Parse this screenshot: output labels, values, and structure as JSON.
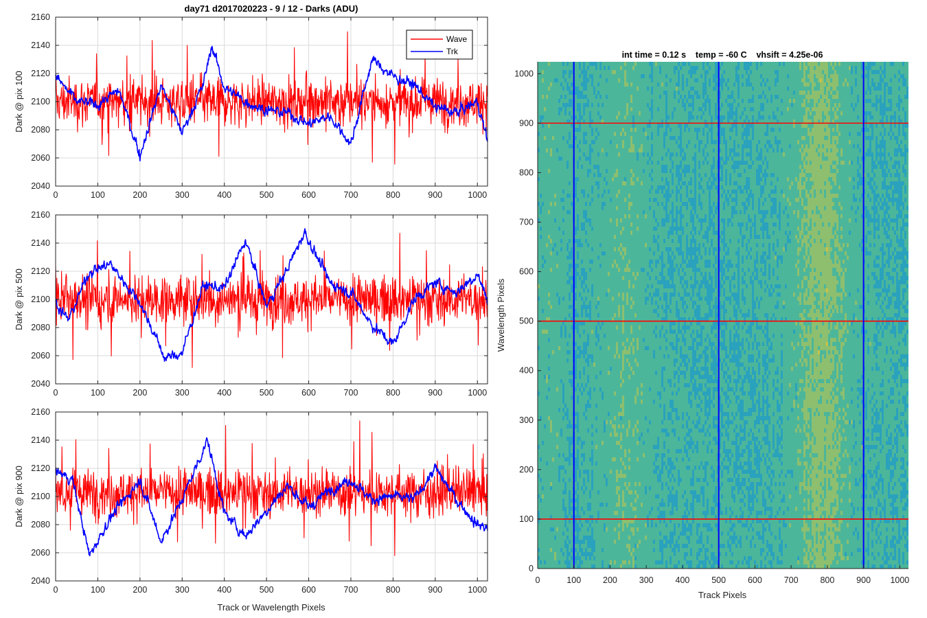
{
  "chart_data": [
    {
      "type": "line",
      "title": "day71 d2017020223 - 9 / 12 - Darks (ADU)",
      "ylabel": "Dark @ pix 100",
      "xlabel": "",
      "xlim": [
        0,
        1024
      ],
      "ylim": [
        2040,
        2160
      ],
      "xticks": [
        0,
        100,
        200,
        300,
        400,
        500,
        600,
        700,
        800,
        900,
        1000
      ],
      "yticks": [
        2040,
        2060,
        2080,
        2100,
        2120,
        2140,
        2160
      ],
      "grid": true,
      "legend": {
        "placement": "top-right",
        "entries": [
          "Wave",
          "Trk"
        ]
      },
      "series": [
        {
          "name": "Wave",
          "color": "#ff0000",
          "mean": 2100,
          "noise": 12,
          "min": 2046,
          "max": 2152
        },
        {
          "name": "Trk",
          "color": "#0000ff",
          "anchors_x": [
            0,
            50,
            100,
            150,
            200,
            250,
            300,
            350,
            370,
            400,
            450,
            500,
            550,
            600,
            650,
            700,
            750,
            800,
            850,
            900,
            950,
            1000,
            1024
          ],
          "anchors_y": [
            2118,
            2100,
            2098,
            2108,
            2062,
            2112,
            2078,
            2112,
            2140,
            2110,
            2100,
            2094,
            2092,
            2084,
            2090,
            2070,
            2130,
            2118,
            2112,
            2096,
            2092,
            2100,
            2072
          ]
        }
      ]
    },
    {
      "type": "line",
      "title": "",
      "ylabel": "Dark @ pix 500",
      "xlabel": "",
      "xlim": [
        0,
        1024
      ],
      "ylim": [
        2040,
        2160
      ],
      "xticks": [
        0,
        100,
        200,
        300,
        400,
        500,
        600,
        700,
        800,
        900,
        1000
      ],
      "yticks": [
        2040,
        2060,
        2080,
        2100,
        2120,
        2140,
        2160
      ],
      "grid": true,
      "series": [
        {
          "name": "Wave",
          "color": "#ff0000",
          "mean": 2100,
          "noise": 12,
          "min": 2045,
          "max": 2147
        },
        {
          "name": "Trk",
          "color": "#0000ff",
          "anchors_x": [
            0,
            30,
            80,
            130,
            200,
            260,
            300,
            350,
            400,
            450,
            500,
            550,
            590,
            650,
            700,
            750,
            800,
            850,
            900,
            950,
            1000,
            1024
          ],
          "anchors_y": [
            2098,
            2085,
            2120,
            2125,
            2098,
            2058,
            2062,
            2110,
            2108,
            2142,
            2095,
            2122,
            2148,
            2112,
            2105,
            2082,
            2068,
            2100,
            2112,
            2105,
            2118,
            2100
          ]
        }
      ]
    },
    {
      "type": "line",
      "title": "",
      "ylabel": "Dark @ pix 900",
      "xlabel": "Track or Wavelength Pixels",
      "xlim": [
        0,
        1024
      ],
      "ylim": [
        2040,
        2160
      ],
      "xticks": [
        0,
        100,
        200,
        300,
        400,
        500,
        600,
        700,
        800,
        900,
        1000
      ],
      "yticks": [
        2040,
        2060,
        2080,
        2100,
        2120,
        2140,
        2160
      ],
      "grid": true,
      "series": [
        {
          "name": "Wave",
          "color": "#ff0000",
          "mean": 2103,
          "noise": 12,
          "min": 2056,
          "max": 2154
        },
        {
          "name": "Trk",
          "color": "#0000ff",
          "anchors_x": [
            0,
            40,
            80,
            130,
            200,
            250,
            300,
            360,
            400,
            450,
            500,
            550,
            600,
            650,
            700,
            750,
            800,
            850,
            900,
            950,
            1000,
            1024
          ],
          "anchors_y": [
            2118,
            2112,
            2058,
            2085,
            2112,
            2068,
            2098,
            2140,
            2088,
            2072,
            2090,
            2108,
            2092,
            2105,
            2112,
            2098,
            2100,
            2098,
            2120,
            2098,
            2080,
            2078
          ]
        }
      ]
    },
    {
      "type": "heatmap",
      "title": "int time = 0.12 s    temp = -60 C    vhsift = 4.25e-06",
      "xlabel": "Track Pixels",
      "ylabel": "Wavelength Pixels",
      "xlim": [
        0,
        1024
      ],
      "ylim": [
        0,
        1024
      ],
      "xticks": [
        0,
        100,
        200,
        300,
        400,
        500,
        600,
        700,
        800,
        900,
        1000
      ],
      "yticks": [
        0,
        100,
        200,
        300,
        400,
        500,
        600,
        700,
        800,
        900,
        1000
      ],
      "colormap": [
        "#1f8fd0",
        "#25a6b8",
        "#4cb69a",
        "#8dbf6f",
        "#c9c24a"
      ],
      "vertical_markers": {
        "x": [
          100,
          500,
          900
        ],
        "color": "#0000ff"
      },
      "horizontal_markers": {
        "y": [
          100,
          500,
          900
        ],
        "color": "#ff0000"
      }
    }
  ]
}
